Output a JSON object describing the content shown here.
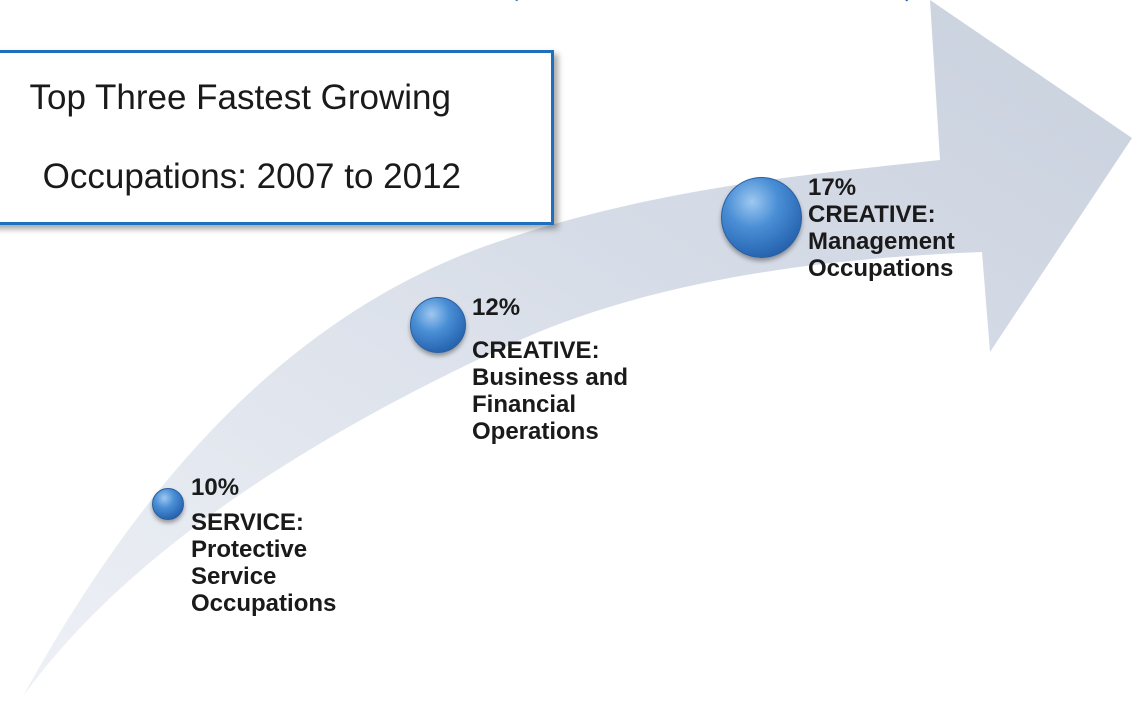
{
  "title": {
    "line1": "Top Three Fastest Growing",
    "line2": "Occupations: 2007 to 2012"
  },
  "milestones": [
    {
      "percent": "10%",
      "sector": "SERVICE:",
      "occupation": "Protective\nService\nOccupations"
    },
    {
      "percent": "12%",
      "sector": "CREATIVE:",
      "occupation": "Business and\nFinancial\nOperations"
    },
    {
      "percent": "17%",
      "sector": "CREATIVE:",
      "occupation": "Management\nOccupations"
    }
  ],
  "colors": {
    "arrow": "#d5dbe6",
    "title_border": "#1f6fbf",
    "circle": "#3f7fcc",
    "text": "#1a1a1a",
    "heading": "#1f5fa8"
  }
}
